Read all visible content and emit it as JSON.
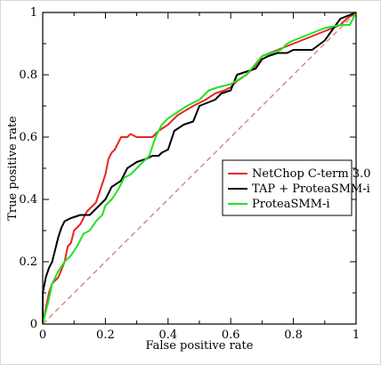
{
  "chart_data": {
    "type": "line",
    "xlabel": "False positive rate",
    "ylabel": "True positive rate",
    "xlim": [
      0,
      1
    ],
    "ylim": [
      0,
      1
    ],
    "x_ticks": [
      0,
      0.2,
      0.4,
      0.6,
      0.8,
      1
    ],
    "y_ticks": [
      0,
      0.2,
      0.4,
      0.6,
      0.8,
      1
    ],
    "x_tick_labels": [
      "0",
      "0.2",
      "0.4",
      "0.6",
      "0.8",
      "1"
    ],
    "y_tick_labels": [
      "0",
      "0.2",
      "0.4",
      "0.6",
      "0.8",
      "1"
    ],
    "grid": false,
    "legend_position": "center-right",
    "diagonal_reference": true,
    "series": [
      {
        "name": "NetChop C-term 3.0",
        "color": "#e8262a",
        "x": [
          0,
          0.01,
          0.02,
          0.03,
          0.05,
          0.07,
          0.08,
          0.09,
          0.1,
          0.11,
          0.12,
          0.13,
          0.14,
          0.15,
          0.16,
          0.17,
          0.18,
          0.19,
          0.2,
          0.21,
          0.22,
          0.23,
          0.24,
          0.25,
          0.27,
          0.28,
          0.3,
          0.35,
          0.37,
          0.4,
          0.43,
          0.48,
          0.52,
          0.55,
          0.58,
          0.6,
          0.62,
          0.65,
          0.68,
          0.7,
          0.75,
          0.8,
          0.85,
          0.9,
          0.95,
          0.97,
          1
        ],
        "y": [
          0,
          0.05,
          0.1,
          0.13,
          0.15,
          0.2,
          0.25,
          0.26,
          0.3,
          0.31,
          0.32,
          0.34,
          0.36,
          0.37,
          0.38,
          0.39,
          0.42,
          0.45,
          0.48,
          0.53,
          0.55,
          0.56,
          0.58,
          0.6,
          0.6,
          0.61,
          0.6,
          0.6,
          0.62,
          0.64,
          0.67,
          0.7,
          0.72,
          0.74,
          0.75,
          0.76,
          0.78,
          0.8,
          0.83,
          0.86,
          0.88,
          0.9,
          0.92,
          0.94,
          0.96,
          0.98,
          1
        ]
      },
      {
        "name": "TAP + ProteaSMM-i",
        "color": "#000000",
        "x": [
          0,
          0,
          0.01,
          0.02,
          0.03,
          0.04,
          0.05,
          0.06,
          0.07,
          0.09,
          0.12,
          0.15,
          0.18,
          0.2,
          0.22,
          0.25,
          0.27,
          0.3,
          0.33,
          0.35,
          0.37,
          0.38,
          0.4,
          0.42,
          0.45,
          0.48,
          0.5,
          0.55,
          0.57,
          0.6,
          0.62,
          0.65,
          0.68,
          0.7,
          0.72,
          0.75,
          0.78,
          0.8,
          0.83,
          0.86,
          0.9,
          0.95,
          1
        ],
        "y": [
          0,
          0.1,
          0.15,
          0.18,
          0.2,
          0.24,
          0.28,
          0.31,
          0.33,
          0.34,
          0.35,
          0.35,
          0.38,
          0.4,
          0.44,
          0.46,
          0.5,
          0.52,
          0.53,
          0.54,
          0.54,
          0.55,
          0.56,
          0.62,
          0.64,
          0.65,
          0.7,
          0.72,
          0.74,
          0.75,
          0.8,
          0.81,
          0.82,
          0.85,
          0.86,
          0.87,
          0.87,
          0.88,
          0.88,
          0.88,
          0.91,
          0.98,
          1
        ]
      },
      {
        "name": "ProteaSMM-i",
        "color": "#22e322",
        "x": [
          0,
          0.02,
          0.03,
          0.05,
          0.07,
          0.09,
          0.11,
          0.13,
          0.15,
          0.17,
          0.19,
          0.2,
          0.22,
          0.24,
          0.26,
          0.28,
          0.3,
          0.32,
          0.34,
          0.36,
          0.38,
          0.4,
          0.43,
          0.46,
          0.5,
          0.53,
          0.56,
          0.6,
          0.65,
          0.7,
          0.73,
          0.76,
          0.78,
          0.8,
          0.85,
          0.9,
          0.95,
          0.98,
          1
        ],
        "y": [
          0,
          0.08,
          0.13,
          0.17,
          0.2,
          0.22,
          0.25,
          0.29,
          0.3,
          0.33,
          0.35,
          0.38,
          0.4,
          0.43,
          0.47,
          0.48,
          0.5,
          0.52,
          0.54,
          0.6,
          0.64,
          0.66,
          0.68,
          0.7,
          0.72,
          0.75,
          0.76,
          0.77,
          0.8,
          0.86,
          0.87,
          0.88,
          0.9,
          0.91,
          0.93,
          0.95,
          0.96,
          0.96,
          1
        ]
      }
    ]
  }
}
